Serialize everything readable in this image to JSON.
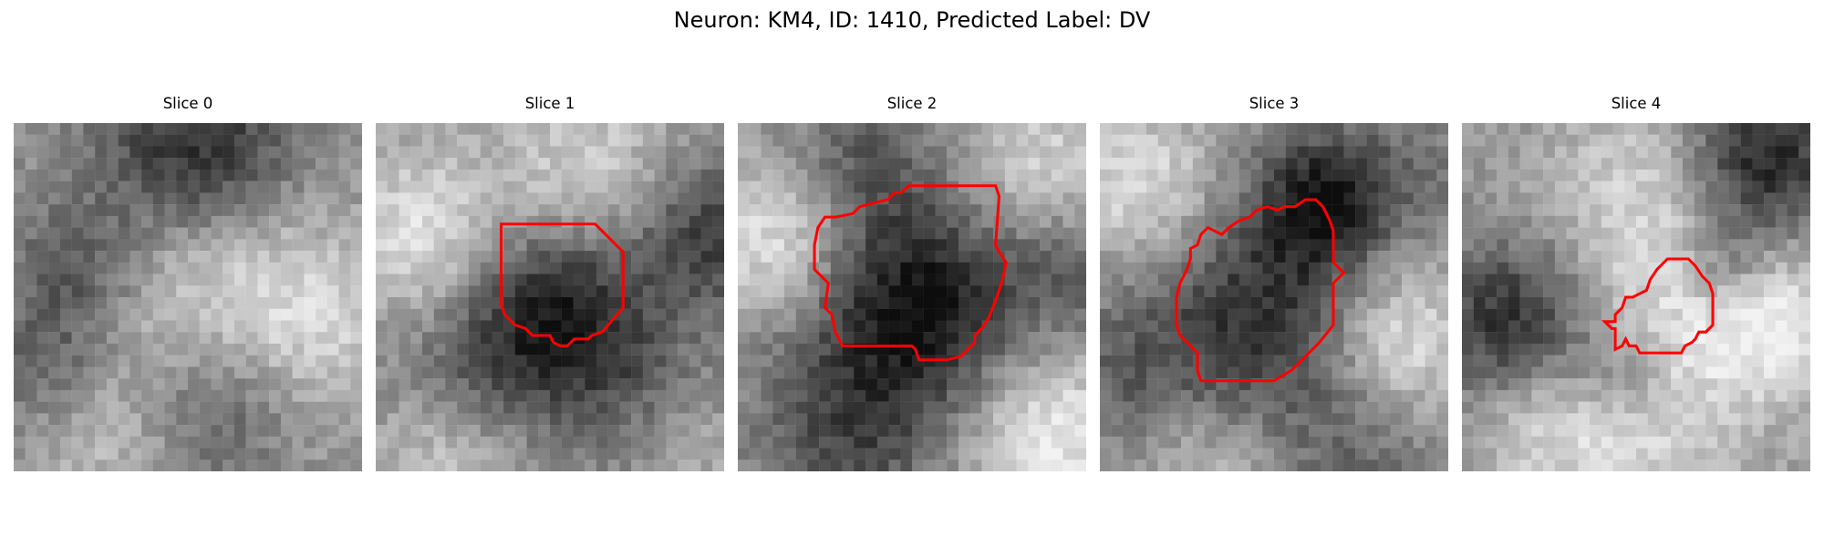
{
  "figure": {
    "title": "Neuron: KM4, ID: 1410, Predicted Label: DV",
    "contour_color": "#ff0000"
  },
  "panels": [
    {
      "title": "Slice 0",
      "has_contour": false
    },
    {
      "title": "Slice 1",
      "has_contour": true
    },
    {
      "title": "Slice 2",
      "has_contour": true
    },
    {
      "title": "Slice 3",
      "has_contour": true
    },
    {
      "title": "Slice 4",
      "has_contour": true
    }
  ]
}
